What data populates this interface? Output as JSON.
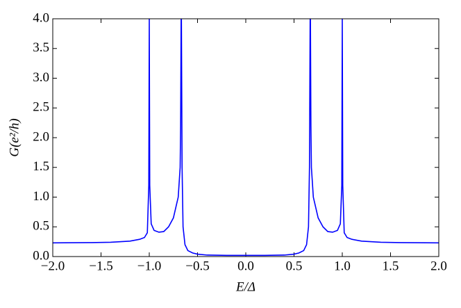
{
  "chart_data": {
    "type": "line",
    "xlabel": "E/Δ",
    "ylabel": "G(e²/h)",
    "x": [
      -2.0,
      -1.6,
      -1.4,
      -1.2,
      -1.1,
      -1.05,
      -1.02,
      -1.005,
      -1.0,
      -0.995,
      -0.98,
      -0.95,
      -0.9,
      -0.85,
      -0.8,
      -0.75,
      -0.7,
      -0.68,
      -0.675,
      -0.67,
      -0.667,
      -0.66,
      -0.65,
      -0.63,
      -0.6,
      -0.55,
      -0.5,
      -0.4,
      -0.2,
      0.0,
      0.2,
      0.4,
      0.5,
      0.55,
      0.6,
      0.63,
      0.65,
      0.66,
      0.667,
      0.67,
      0.675,
      0.68,
      0.7,
      0.75,
      0.8,
      0.85,
      0.9,
      0.95,
      0.98,
      0.995,
      1.0,
      1.005,
      1.02,
      1.05,
      1.1,
      1.2,
      1.4,
      1.6,
      2.0
    ],
    "series": [
      {
        "color": "#0000ff",
        "values": [
          0.23,
          0.235,
          0.24,
          0.26,
          0.29,
          0.32,
          0.4,
          1.2,
          4.0,
          1.2,
          0.55,
          0.44,
          0.41,
          0.42,
          0.5,
          0.65,
          1.0,
          1.5,
          2.2,
          4.0,
          4.0,
          1.5,
          0.5,
          0.2,
          0.1,
          0.06,
          0.04,
          0.025,
          0.02,
          0.02,
          0.02,
          0.025,
          0.04,
          0.06,
          0.1,
          0.2,
          0.5,
          1.5,
          4.0,
          4.0,
          2.2,
          1.5,
          1.0,
          0.65,
          0.5,
          0.42,
          0.41,
          0.44,
          0.55,
          1.2,
          4.0,
          1.2,
          0.4,
          0.32,
          0.29,
          0.26,
          0.24,
          0.235,
          0.23
        ]
      }
    ],
    "xlim": [
      -2.0,
      2.0
    ],
    "xticks": [
      {
        "value": -2.0,
        "label": "−2.0"
      },
      {
        "value": -1.5,
        "label": "−1.5"
      },
      {
        "value": -1.0,
        "label": "−1.0"
      },
      {
        "value": -0.5,
        "label": "−0.5"
      },
      {
        "value": 0.0,
        "label": "0.0"
      },
      {
        "value": 0.5,
        "label": "0.5"
      },
      {
        "value": 1.0,
        "label": "1.0"
      },
      {
        "value": 1.5,
        "label": "1.5"
      },
      {
        "value": 2.0,
        "label": "2.0"
      }
    ],
    "ylim": [
      0.0,
      4.0
    ],
    "yticks": [
      {
        "value": 0.0,
        "label": "0.0"
      },
      {
        "value": 0.5,
        "label": "0.5"
      },
      {
        "value": 1.0,
        "label": "1.0"
      },
      {
        "value": 1.5,
        "label": "1.5"
      },
      {
        "value": 2.0,
        "label": "2.0"
      },
      {
        "value": 2.5,
        "label": "2.5"
      },
      {
        "value": 3.0,
        "label": "3.0"
      },
      {
        "value": 3.5,
        "label": "3.5"
      },
      {
        "value": 4.0,
        "label": "4.0"
      }
    ]
  }
}
